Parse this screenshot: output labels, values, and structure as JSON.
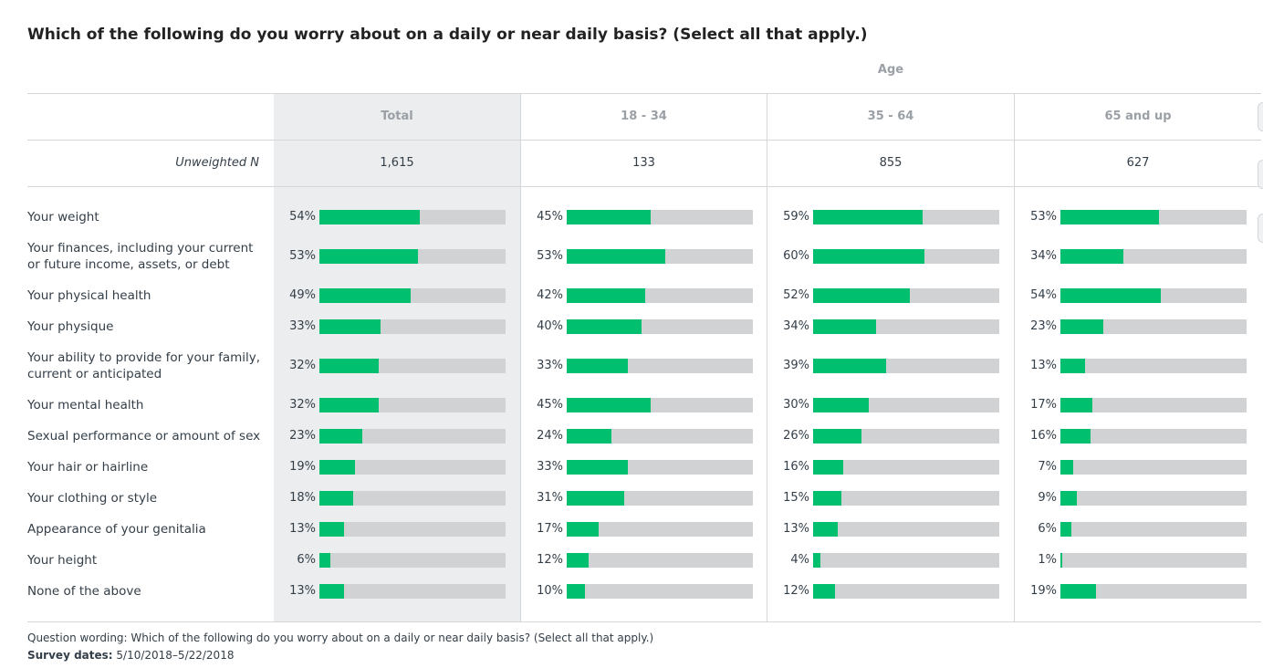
{
  "title": "Which of the following do you worry about on a daily or near daily basis? (Select all that apply.)",
  "group_label": "Age",
  "columns": [
    "Total",
    "18 - 34",
    "35 - 64",
    "65 and up"
  ],
  "unweighted_label": "Unweighted N",
  "unweighted_n": [
    "1,615",
    "133",
    "855",
    "627"
  ],
  "footer": {
    "wording": "Question wording: Which of the following do you worry about on a daily or near daily basis? (Select all that apply.)",
    "dates_label": "Survey dates:",
    "dates_value": "5/10/2018–5/22/2018"
  },
  "colors": {
    "bar": "#00bf6f",
    "track": "#d0d2d4",
    "highlight": "#ebedee"
  },
  "chart_data": {
    "type": "bar",
    "orientation": "horizontal",
    "xlim": [
      0,
      100
    ],
    "categories": [
      "Your weight",
      "Your finances, including your current or future income, assets, or debt",
      "Your physical health",
      "Your physique",
      "Your ability to provide for your family, current or anticipated",
      "Your mental health",
      "Sexual performance or amount of sex",
      "Your hair or hairline",
      "Your clothing or style",
      "Appearance of your genitalia",
      "Your height",
      "None of the above"
    ],
    "series": [
      {
        "name": "Total",
        "values": [
          54,
          53,
          49,
          33,
          32,
          32,
          23,
          19,
          18,
          13,
          6,
          13
        ]
      },
      {
        "name": "18 - 34",
        "values": [
          45,
          53,
          42,
          40,
          33,
          45,
          24,
          33,
          31,
          17,
          12,
          10
        ]
      },
      {
        "name": "35 - 64",
        "values": [
          59,
          60,
          52,
          34,
          39,
          30,
          26,
          16,
          15,
          13,
          4,
          12
        ]
      },
      {
        "name": "65 and up",
        "values": [
          53,
          34,
          54,
          23,
          13,
          17,
          16,
          7,
          9,
          6,
          1,
          19
        ]
      }
    ]
  }
}
